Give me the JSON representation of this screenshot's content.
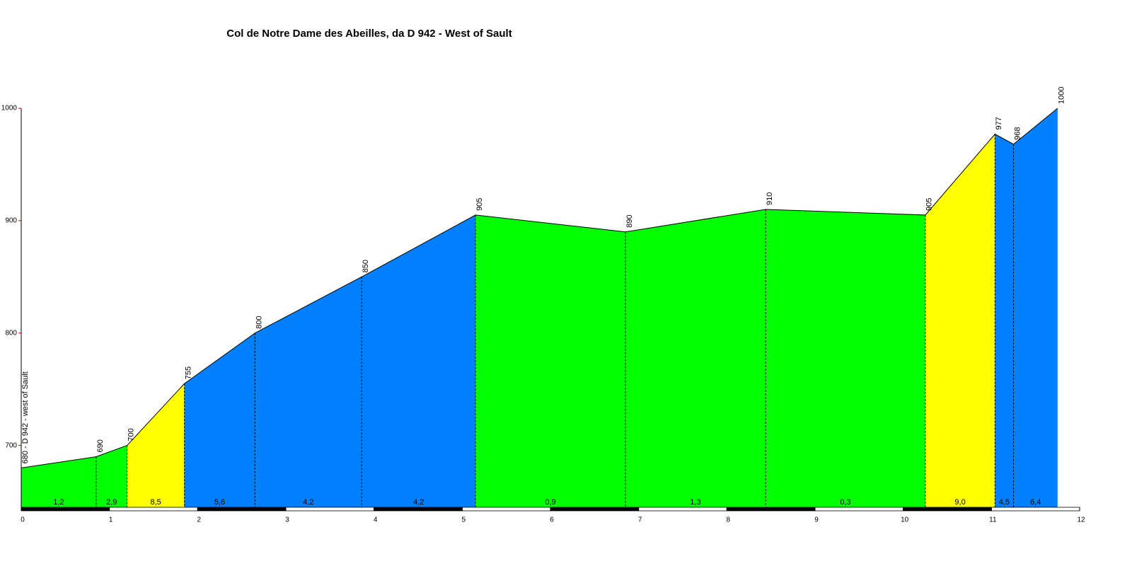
{
  "chart_data": {
    "type": "area",
    "title": "Col de Notre Dame des Abeilles, da D 942 - West of Sault",
    "x": [
      0,
      0.85,
      1.2,
      1.85,
      2.65,
      3.86,
      5.15,
      6.85,
      8.44,
      10.25,
      11.04,
      11.25,
      11.75
    ],
    "values": [
      680,
      690,
      700,
      755,
      800,
      850,
      905,
      890,
      910,
      905,
      977,
      968,
      1000
    ],
    "value_labels": [
      "680 - D 942 - west of Sault",
      "690",
      "700",
      "755",
      "800",
      "850",
      "905",
      "890",
      "910",
      "905",
      "977",
      "968",
      "1000"
    ],
    "segments": {
      "values": [
        1.2,
        2.9,
        8.5,
        5.6,
        4.2,
        4.2,
        0.9,
        1.3,
        0.3,
        9.0,
        4.5,
        6.4
      ],
      "value_labels": [
        "1,2",
        "2,9",
        "8,5",
        "5,6",
        "4,2",
        "4,2",
        "0,9",
        "1,3",
        "0,3",
        "9,0",
        "4,5",
        "6,4"
      ],
      "colors": [
        "#00ff00",
        "#00ff00",
        "#ffff00",
        "#0080ff",
        "#0080ff",
        "#0080ff",
        "#00ff00",
        "#00ff00",
        "#00ff00",
        "#ffff00",
        "#0080ff",
        "#0080ff"
      ]
    },
    "xlim": [
      0,
      12
    ],
    "xticks": [
      0,
      1,
      2,
      3,
      4,
      5,
      6,
      7,
      8,
      9,
      10,
      11,
      12
    ],
    "ylim": [
      645,
      1000
    ],
    "yticks": [
      700,
      800,
      900,
      1000
    ]
  }
}
